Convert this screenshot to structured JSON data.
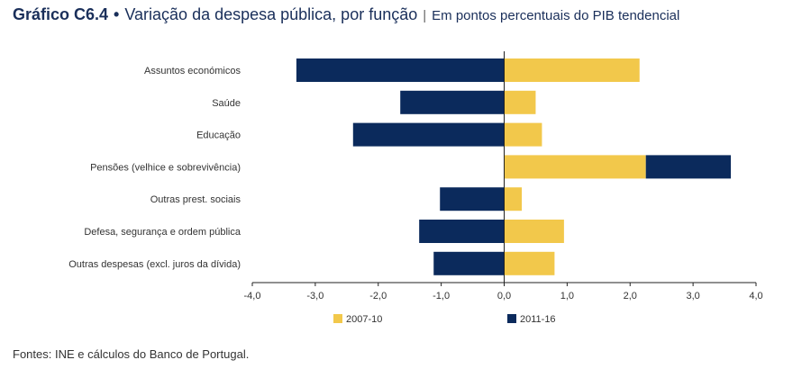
{
  "header": {
    "code": "Gráfico C6.4",
    "bullet": "•",
    "title": "Variação da despesa pública, por função",
    "separator": "|",
    "subtitle": "Em pontos percentuais do PIB tendencial"
  },
  "colors": {
    "series_2007_10": "#f2c84b",
    "series_2011_16": "#0b2a5c",
    "axis": "#222222"
  },
  "chart_data": {
    "type": "bar",
    "orientation": "horizontal",
    "stacked": true,
    "categories": [
      "Assuntos económicos",
      "Saúde",
      "Educação",
      "Pensões (velhice e sobrevivência)",
      "Outras prest. sociais",
      "Defesa, segurança e ordem pública",
      "Outras despesas (excl. juros da dívida)"
    ],
    "series": [
      {
        "name": "2007-10",
        "color": "#f2c84b",
        "values": [
          2.15,
          0.5,
          0.6,
          2.25,
          0.28,
          0.95,
          0.8
        ]
      },
      {
        "name": "2011-16",
        "color": "#0b2a5c",
        "values": [
          -3.3,
          -1.65,
          -2.4,
          1.35,
          -1.02,
          -1.35,
          -1.12
        ]
      }
    ],
    "xlim": [
      -4.0,
      4.0
    ],
    "xticks": [
      -4.0,
      -3.0,
      -2.0,
      -1.0,
      0.0,
      1.0,
      2.0,
      3.0,
      4.0
    ],
    "xtick_labels": [
      "-4,0",
      "-3,0",
      "-2,0",
      "-1,0",
      "0,0",
      "1,0",
      "2,0",
      "3,0",
      "4,0"
    ],
    "legend_position": "bottom",
    "grid": false
  },
  "footer": {
    "source": "Fontes: INE e cálculos do Banco de Portugal."
  }
}
